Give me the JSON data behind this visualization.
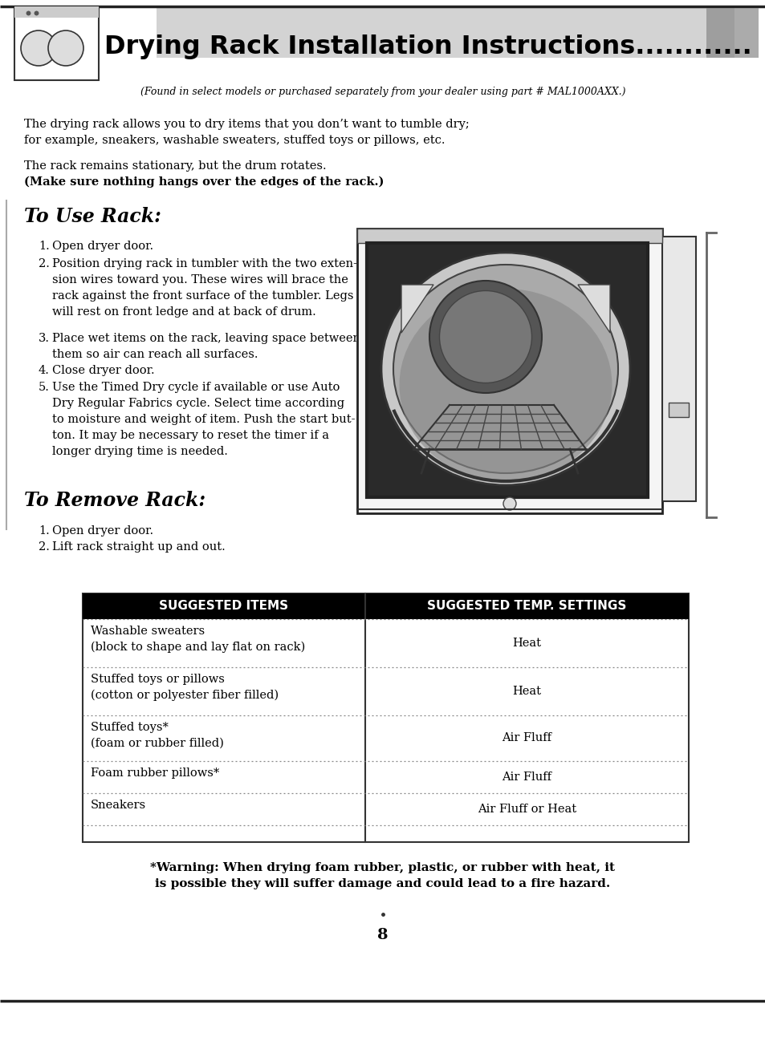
{
  "page_bg": "#ffffff",
  "header_title": "Drying Rack Installation Instructions............",
  "header_subtitle": "(Found in select models or purchased separately from your dealer using part # MAL1000AXX.)",
  "intro_para1_line1": "The drying rack allows you to dry items that you don’t want to tumble dry;",
  "intro_para1_line2": "for example, sneakers, washable sweaters, stuffed toys or pillows, etc.",
  "intro_para2_normal": "The rack remains stationary, but the drum rotates.",
  "intro_para2_bold": "(Make sure nothing hangs over the edges of the rack.)",
  "section1_title": "To Use Rack:",
  "section1_steps": [
    "Open dryer door.",
    "Position drying rack in tumbler with the two exten-\nsion wires toward you. These wires will brace the\nrack against the front surface of the tumbler. Legs\nwill rest on front ledge and at back of drum.",
    "Place wet items on the rack, leaving space between\nthem so air can reach all surfaces.",
    "Close dryer door.",
    "Use the Timed Dry cycle if available or use Auto\nDry Regular Fabrics cycle. Select time according\nto moisture and weight of item. Push the start but-\nton. It may be necessary to reset the timer if a\nlonger drying time is needed."
  ],
  "section2_title": "To Remove Rack:",
  "section2_steps": [
    "Open dryer door.",
    "Lift rack straight up and out."
  ],
  "table_header": [
    "SUGGESTED ITEMS",
    "SUGGESTED TEMP. SETTINGS"
  ],
  "table_rows": [
    [
      "Washable sweaters\n(block to shape and lay flat on rack)",
      "Heat"
    ],
    [
      "Stuffed toys or pillows\n(cotton or polyester fiber filled)",
      "Heat"
    ],
    [
      "Stuffed toys*\n(foam or rubber filled)",
      "Air Fluff"
    ],
    [
      "Foam rubber pillows*",
      "Air Fluff"
    ],
    [
      "Sneakers",
      "Air Fluff or Heat"
    ]
  ],
  "warning_line1": "*Warning: When drying foam rubber, plastic, or rubber with heat, it",
  "warning_line2": "is possible they will suffer damage and could lead to a fire hazard.",
  "page_number": "8",
  "text_color": "#000000",
  "table_header_bg": "#000000",
  "table_header_fg": "#ffffff",
  "header_gray_bg": "#b0b0b0",
  "dot_color": "#666666"
}
